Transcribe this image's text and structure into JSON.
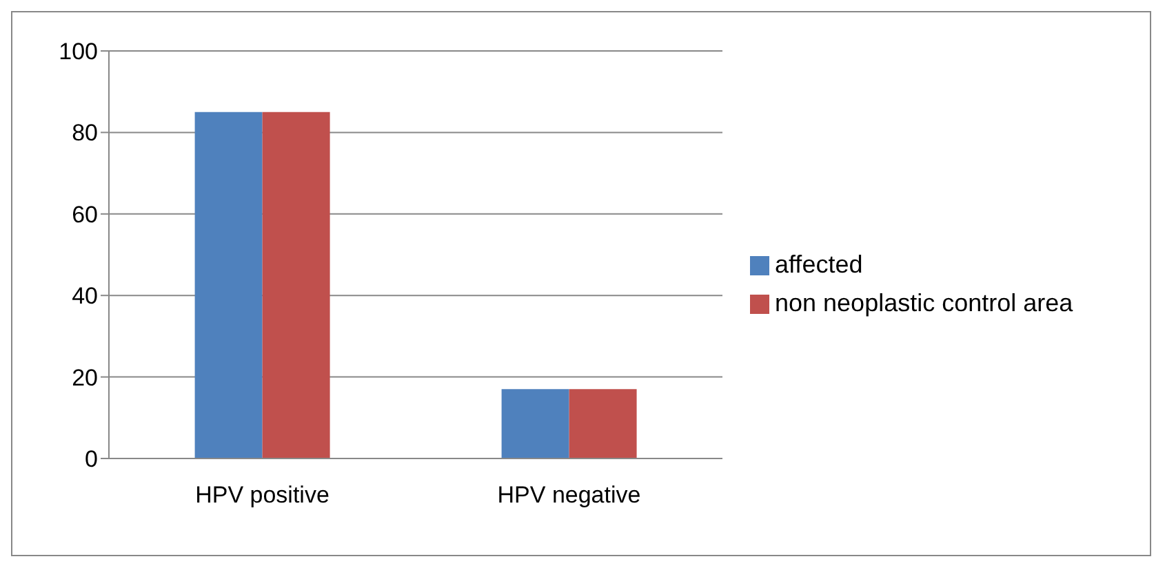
{
  "chart_data": {
    "type": "bar",
    "categories": [
      "HPV positive",
      "HPV negative"
    ],
    "series": [
      {
        "name": "affected",
        "color": "#4f81bd",
        "values": [
          85,
          17
        ]
      },
      {
        "name": "non neoplastic control area",
        "color": "#c0504d",
        "values": [
          85,
          17
        ]
      }
    ],
    "ylim": [
      0,
      100
    ],
    "yticks": [
      0,
      20,
      40,
      60,
      80,
      100
    ],
    "grid": "y",
    "legend": "right"
  }
}
